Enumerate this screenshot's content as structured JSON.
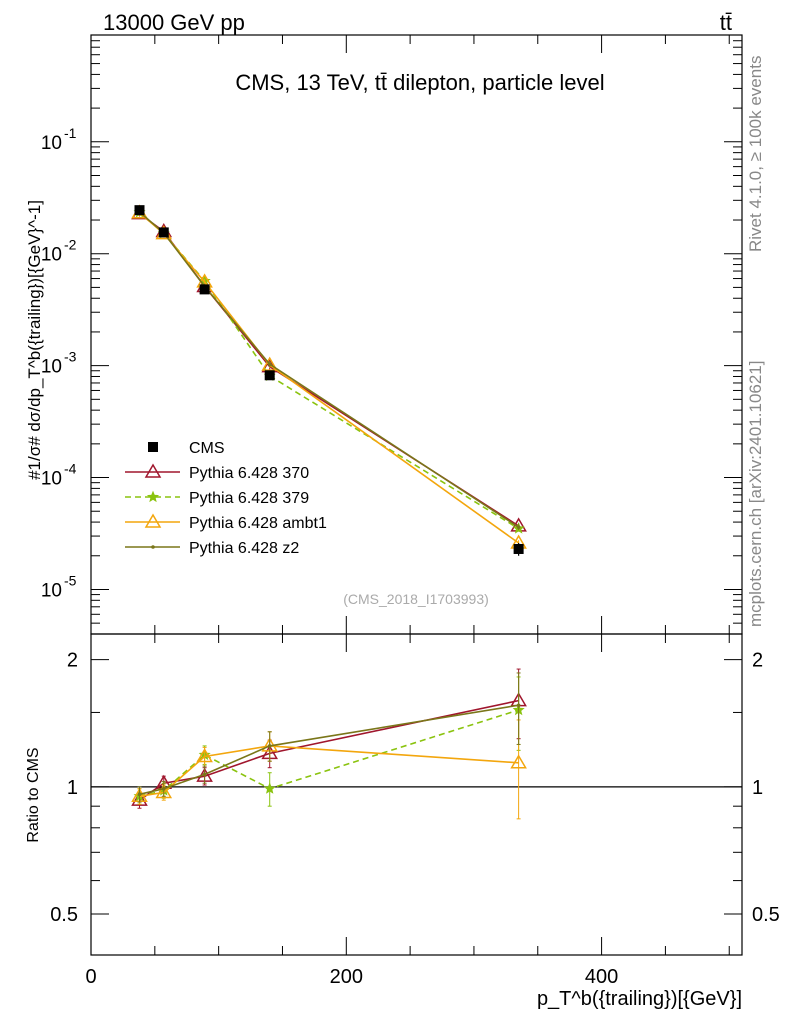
{
  "header": {
    "left": "13000 GeV pp",
    "right": "tt̄"
  },
  "side_labels": {
    "rivet": "Rivet 4.1.0, ≥ 100k events",
    "mcplots": "mcplots.cern.ch [arXiv:2401.10621]"
  },
  "chart_data": {
    "type": "line",
    "title": "CMS, 13 TeV, tt̄ dilepton, particle level",
    "analysis_id": "(CMS_2018_I1703993)",
    "ylabel_main": "#1/σ# dσ/dp_T^b({trailing})[{GeV}^-1]",
    "ylabel_ratio": "Ratio to CMS",
    "xlabel": "p_T^b({trailing})[{GeV}]",
    "x_axis": {
      "min": 0,
      "max": 510,
      "ticks": [
        0,
        200,
        400
      ],
      "tick_labels": [
        "0",
        "200",
        "400"
      ]
    },
    "main_y_axis": {
      "scale": "log",
      "min": 4e-06,
      "max": 0.9,
      "ticks": [
        1e-05,
        0.0001,
        0.001,
        0.01,
        0.1
      ],
      "tick_labels": [
        "10^-5",
        "10^-4",
        "10^-3",
        "10^-2",
        "10^-1"
      ]
    },
    "ratio_y_axis": {
      "scale": "log",
      "min": 0.4,
      "max": 2.3,
      "ticks": [
        0.5,
        1,
        2
      ],
      "tick_labels": [
        "0.5",
        "1",
        "2"
      ]
    },
    "legend": {
      "position": "lower-left",
      "entries": [
        "CMS",
        "Pythia 6.428 370",
        "Pythia 6.428 379",
        "Pythia 6.428 ambt1",
        "Pythia 6.428 z2"
      ]
    },
    "x": [
      38,
      57,
      89,
      140,
      335
    ],
    "data": {
      "name": "CMS",
      "color": "#000000",
      "values": [
        0.0245,
        0.0155,
        0.0048,
        0.00082,
        2.3e-05
      ],
      "errors": [
        0.0012,
        0.0008,
        0.0003,
        6e-05,
        3e-06
      ]
    },
    "series": [
      {
        "name": "Pythia 6.428 370",
        "color": "#a0162d",
        "marker": "triangle-open",
        "dash": "",
        "values": [
          0.0228,
          0.0158,
          0.0051,
          0.00098,
          3.7e-05
        ],
        "ratio": [
          0.93,
          1.02,
          1.06,
          1.2,
          1.6
        ],
        "ratio_err": [
          0.04,
          0.04,
          0.05,
          0.09,
          0.3
        ]
      },
      {
        "name": "Pythia 6.428 379",
        "color": "#8ac30e",
        "marker": "star",
        "dash": "6,4",
        "values": [
          0.0234,
          0.0152,
          0.0057,
          0.00081,
          3.5e-05
        ],
        "ratio": [
          0.95,
          0.98,
          1.19,
          0.99,
          1.52
        ],
        "ratio_err": [
          0.04,
          0.04,
          0.06,
          0.09,
          0.3
        ]
      },
      {
        "name": "Pythia 6.428 ambt1",
        "color": "#f3a60d",
        "marker": "triangle-open",
        "dash": "",
        "values": [
          0.0232,
          0.0151,
          0.0056,
          0.00101,
          2.6e-05
        ],
        "ratio": [
          0.95,
          0.97,
          1.18,
          1.25,
          1.14
        ],
        "ratio_err": [
          0.04,
          0.04,
          0.06,
          0.1,
          0.3
        ]
      },
      {
        "name": "Pythia 6.428 z2",
        "color": "#7a7619",
        "marker": "dot",
        "dash": "",
        "values": [
          0.0236,
          0.0153,
          0.0051,
          0.00103,
          3.6e-05
        ],
        "ratio": [
          0.96,
          0.99,
          1.07,
          1.25,
          1.56
        ],
        "ratio_err": [
          0.04,
          0.04,
          0.05,
          0.1,
          0.3
        ]
      }
    ]
  }
}
